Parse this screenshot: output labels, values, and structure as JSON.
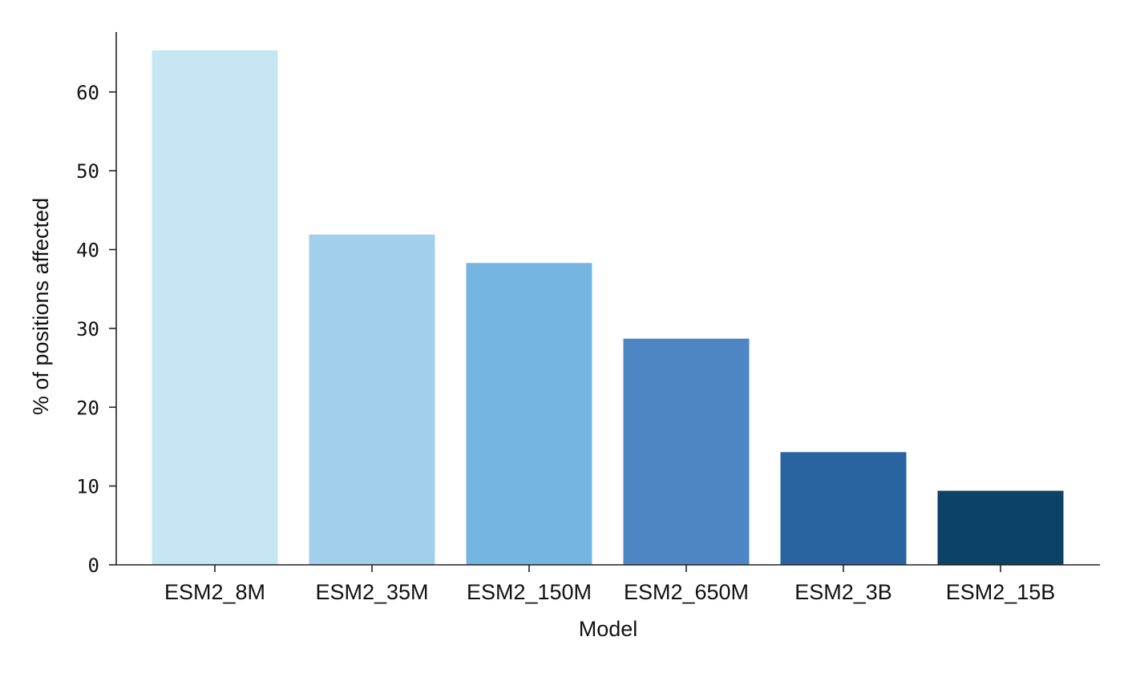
{
  "chart_data": {
    "type": "bar",
    "title": "",
    "xlabel": "Model",
    "ylabel": "% of positions affected",
    "categories": [
      "ESM2_8M",
      "ESM2_35M",
      "ESM2_150M",
      "ESM2_650M",
      "ESM2_3B",
      "ESM2_15B"
    ],
    "values": [
      65.3,
      41.9,
      38.3,
      28.7,
      14.3,
      9.4
    ],
    "colors": [
      "#c6e6f3",
      "#a2cfec",
      "#75b5e1",
      "#4e86c4",
      "#2a64a0",
      "#0b4266"
    ],
    "ylim": [
      0,
      67.6
    ],
    "yticks": [
      "0",
      "10",
      "20",
      "30",
      "40",
      "50",
      "60"
    ],
    "grid": false,
    "legend": "none"
  }
}
